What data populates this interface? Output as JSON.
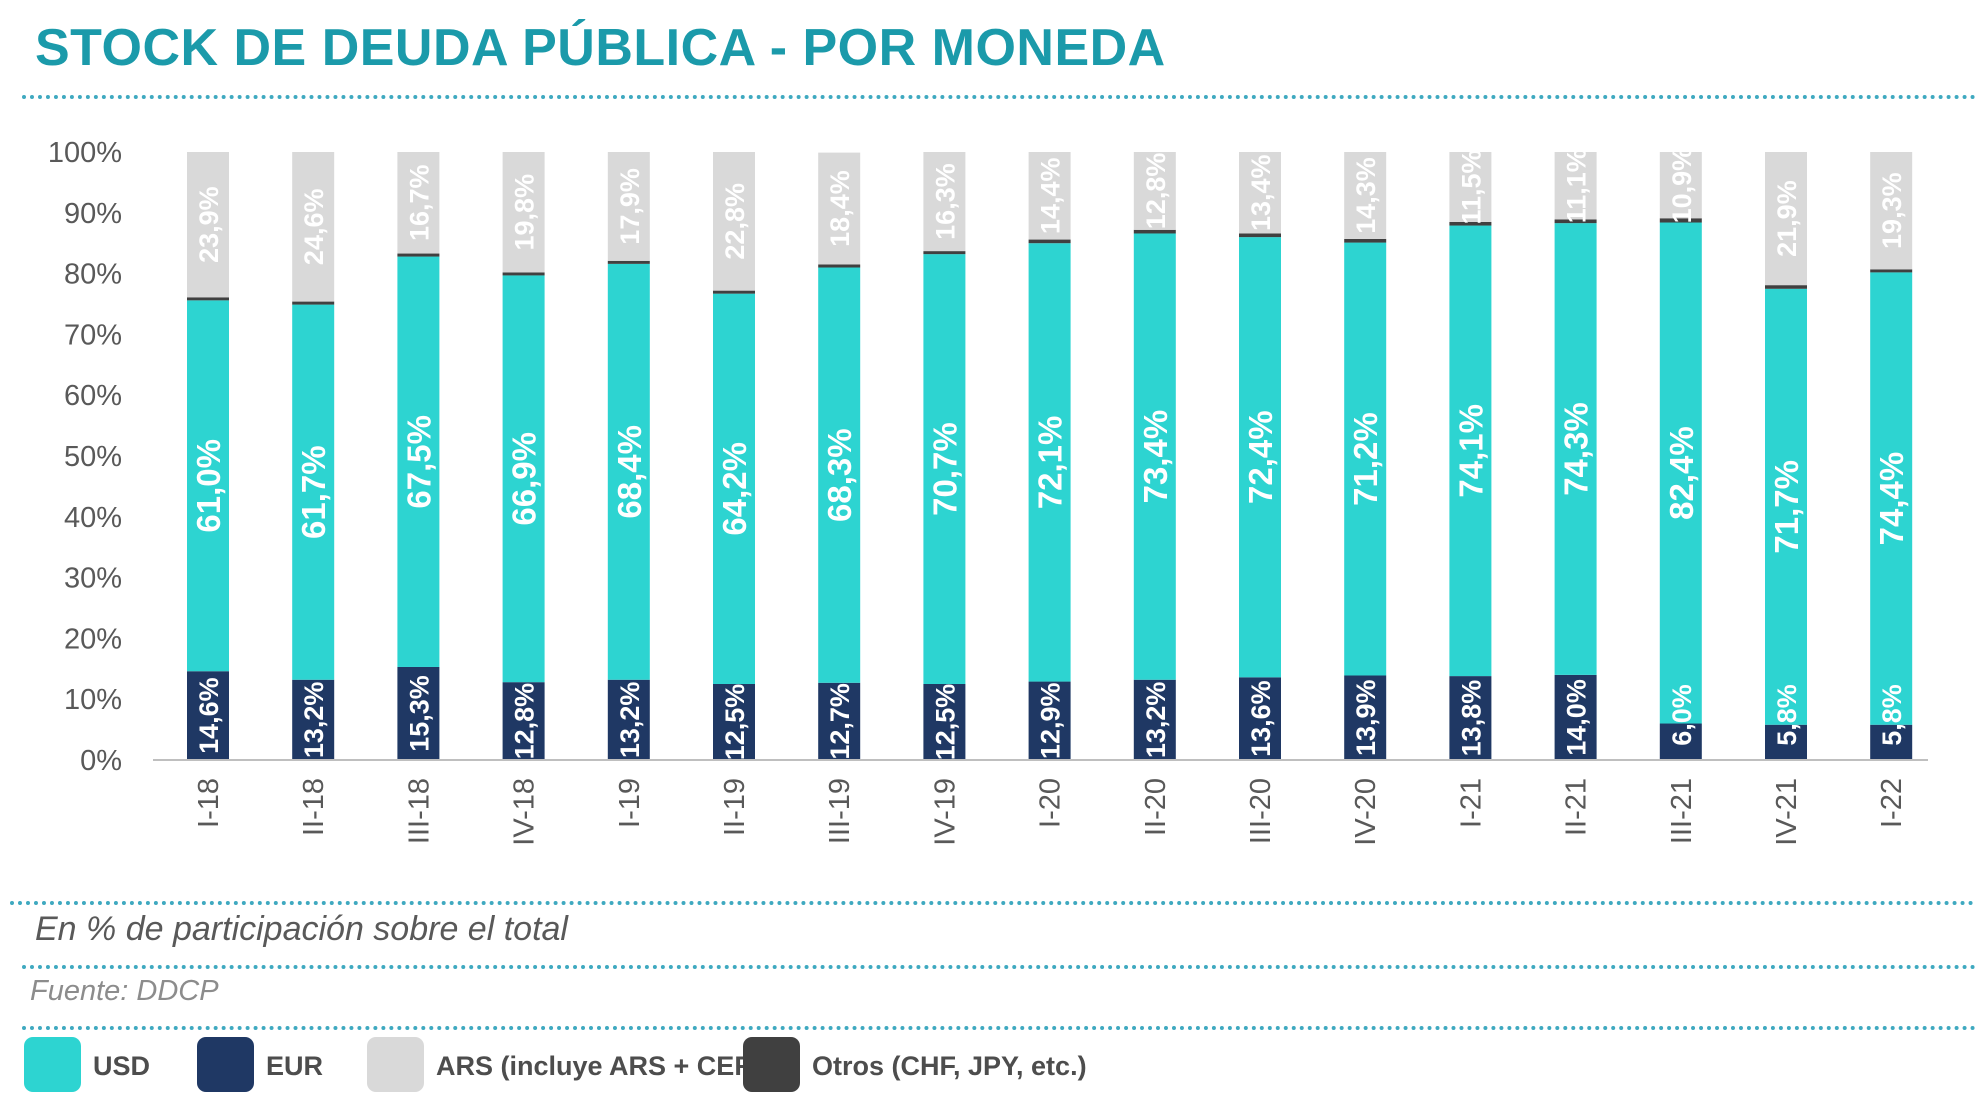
{
  "header": {
    "title": "STOCK DE DEUDA PÚBLICA - POR MONEDA"
  },
  "footer": {
    "subtitle": "En % de participación sobre el total",
    "source": "Fuente: DDCP"
  },
  "colors": {
    "usd": "#2DD4D1",
    "eur": "#1F3864",
    "ars": "#D9D9D9",
    "otros": "#404040",
    "title": "#1B9AAA",
    "dotted_rule": "#3FA9C0"
  },
  "legend": [
    {
      "key": "usd",
      "label": "USD"
    },
    {
      "key": "eur",
      "label": "EUR"
    },
    {
      "key": "ars",
      "label": "ARS (incluye ARS + CER)"
    },
    {
      "key": "otros",
      "label": "Otros (CHF, JPY, etc.)"
    }
  ],
  "chart_data": {
    "type": "bar",
    "stacked": true,
    "ylim": [
      0,
      100
    ],
    "y_ticks": [
      "0%",
      "10%",
      "20%",
      "30%",
      "40%",
      "50%",
      "60%",
      "70%",
      "80%",
      "90%",
      "100%"
    ],
    "categories": [
      "I-18",
      "II-18",
      "III-18",
      "IV-18",
      "I-19",
      "II-19",
      "III-19",
      "IV-19",
      "I-20",
      "II-20",
      "III-20",
      "IV-20",
      "I-21",
      "II-21",
      "III-21",
      "IV-21",
      "I-22"
    ],
    "series": [
      {
        "name": "EUR",
        "key": "eur",
        "values": [
          14.6,
          13.2,
          15.3,
          12.8,
          13.2,
          12.5,
          12.7,
          12.5,
          12.9,
          13.2,
          13.6,
          13.9,
          13.8,
          14.0,
          6.0,
          5.8,
          5.8
        ],
        "labels": [
          "14,6%",
          "13,2%",
          "15,3%",
          "12,8%",
          "13,2%",
          "12,5%",
          "12,7%",
          "12,5%",
          "12,9%",
          "13,2%",
          "13,6%",
          "13,9%",
          "13,8%",
          "14,0%",
          "6,0%",
          "5,8%",
          "5,8%"
        ]
      },
      {
        "name": "USD",
        "key": "usd",
        "values": [
          61.0,
          61.7,
          67.5,
          66.9,
          68.4,
          64.2,
          68.3,
          70.7,
          72.1,
          73.4,
          72.4,
          71.2,
          74.1,
          74.3,
          82.4,
          71.7,
          74.4
        ],
        "labels": [
          "61,0%",
          "61,7%",
          "67,5%",
          "66,9%",
          "68,4%",
          "64,2%",
          "68,3%",
          "70,7%",
          "72,1%",
          "73,4%",
          "72,4%",
          "71,2%",
          "74,1%",
          "74,3%",
          "82,4%",
          "71,7%",
          "74,4%"
        ]
      },
      {
        "name": "Otros (CHF, JPY, etc.)",
        "key": "otros",
        "values": [
          0.5,
          0.5,
          0.5,
          0.5,
          0.5,
          0.5,
          0.5,
          0.5,
          0.6,
          0.6,
          0.6,
          0.6,
          0.6,
          0.6,
          0.7,
          0.6,
          0.5
        ],
        "labels": []
      },
      {
        "name": "ARS (incluye ARS + CER)",
        "key": "ars",
        "values": [
          23.9,
          24.6,
          16.7,
          19.8,
          17.9,
          22.8,
          18.4,
          16.3,
          14.4,
          12.8,
          13.4,
          14.3,
          11.5,
          11.1,
          10.9,
          21.9,
          19.3
        ],
        "labels": [
          "23,9%",
          "24,6%",
          "16,7%",
          "19,8%",
          "17,9%",
          "22,8%",
          "18,4%",
          "16,3%",
          "14,4%",
          "12,8%",
          "13,4%",
          "14,3%",
          "11,5%",
          "11,1%",
          "10,9%",
          "21,9%",
          "19,3%"
        ]
      }
    ]
  }
}
